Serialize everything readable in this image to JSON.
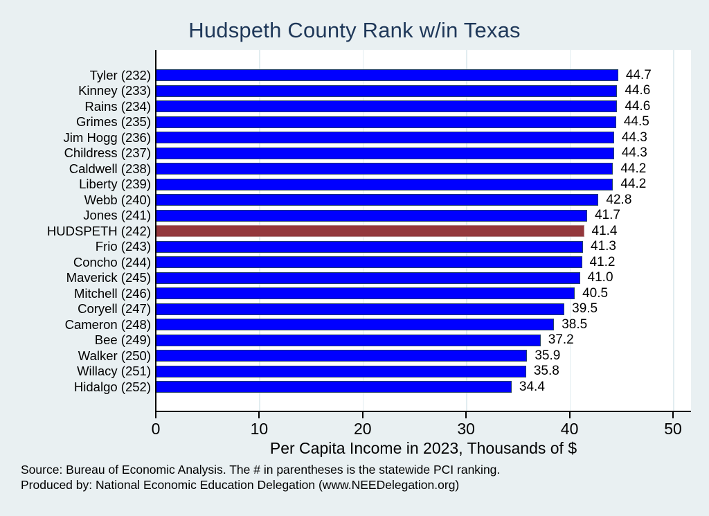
{
  "footer": {
    "source_line1": "Source: Bureau of Economic Analysis. The # in parentheses is the statewide PCI ranking.",
    "source_line2": "Produced by: National Economic Education Delegation (www.NEEDelegation.org)"
  },
  "colors": {
    "background": "#e9f0f2",
    "plot_background": "#ffffff",
    "bar_blue": "#0000ff",
    "bar_blue_outline": "#233f68",
    "bar_highlight_maroon": "#94383c",
    "title_navy": "#1f3859",
    "gridline": "#e2edf0",
    "axis_black": "#000000"
  },
  "chart_data": {
    "type": "bar",
    "orientation": "horizontal",
    "title": "Hudspeth County Rank w/in Texas",
    "xlabel": "Per Capita Income in 2023, Thousands of $",
    "categories": [
      "Tyler (232)",
      "Kinney (233)",
      "Rains (234)",
      "Grimes (235)",
      "Jim Hogg (236)",
      "Childress (237)",
      "Caldwell (238)",
      "Liberty (239)",
      "Webb (240)",
      "Jones (241)",
      "HUDSPETH (242)",
      "Frio (243)",
      "Concho (244)",
      "Maverick (245)",
      "Mitchell (246)",
      "Coryell (247)",
      "Cameron (248)",
      "Bee (249)",
      "Walker (250)",
      "Willacy (251)",
      "Hidalgo (252)"
    ],
    "values": [
      44.7,
      44.6,
      44.6,
      44.5,
      44.3,
      44.3,
      44.2,
      44.2,
      42.8,
      41.7,
      41.4,
      41.3,
      41.2,
      41.0,
      40.5,
      39.5,
      38.5,
      37.2,
      35.9,
      35.8,
      34.4
    ],
    "highlight_index": 10,
    "highlight_category": "HUDSPETH (242)",
    "xticks": [
      0,
      10,
      20,
      30,
      40,
      50
    ],
    "xlim": [
      0,
      51.7
    ],
    "grid": "vertical-light",
    "legend": "none",
    "value_label_decimals": 1
  }
}
